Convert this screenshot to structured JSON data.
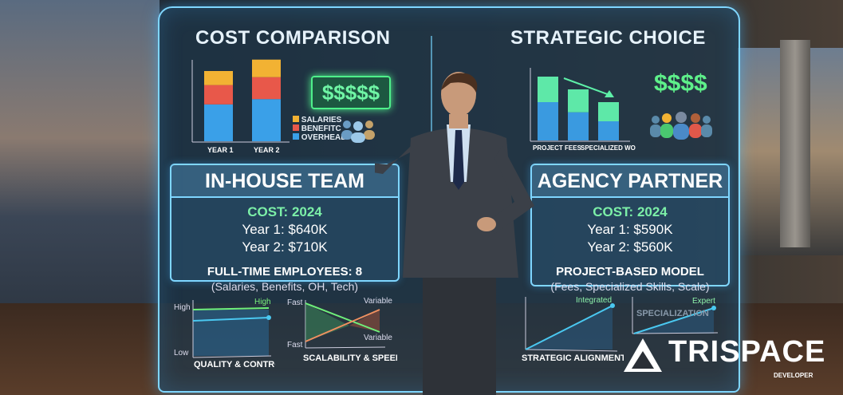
{
  "left": {
    "title": "COST COMPARISON",
    "chart": {
      "categories": [
        "YEAR 1",
        "YEAR 2"
      ],
      "series": [
        {
          "name": "OVERHEAD",
          "color": "#3aa0e8",
          "values": [
            42,
            48
          ]
        },
        {
          "name": "BENEFITC",
          "color": "#e8584a",
          "values": [
            22,
            25
          ]
        },
        {
          "name": "SALARIES",
          "color": "#f2b233",
          "values": [
            16,
            20
          ]
        }
      ]
    },
    "money_text": "$$$$$",
    "box": {
      "heading": "IN-HOUSE TEAM",
      "cost": "COST: 2024",
      "year1": "Year 1: $640K",
      "year2": "Year 2: $710K",
      "model": "FULL-TIME EMPLOYEES: 8",
      "detail": "(Salaries, Benefits, OH, Tech)"
    },
    "quality": {
      "label": "QUALITY & CONTROL",
      "y_high": "High",
      "y_low": "Low",
      "series_label": "High"
    },
    "scal": {
      "label": "SCALABILITY & SPEED",
      "y_top": "Fast",
      "y_bottom": "Fast",
      "label_top": "Variable",
      "label_bottom": "Variable"
    }
  },
  "right": {
    "title": "STRATEGIC CHOICE",
    "chart": {
      "categories": [
        "PROJECT FEES",
        "SPECIALIZED WORK"
      ],
      "values": [
        [
          50,
          30
        ],
        [
          40,
          22
        ],
        [
          30,
          15
        ]
      ]
    },
    "money_text": "$$$$",
    "box": {
      "heading": "AGENCY PARTNER",
      "cost": "COST: 2024",
      "year1": "Year 1: $590K",
      "year2": "Year 2: $560K",
      "model": "PROJECT-BASED MODEL",
      "detail": "(Fees, Specialized Skills, Scale)"
    },
    "align": {
      "label": "STRATEGIC ALIGNMENT",
      "point_label": "Integrated"
    },
    "spec": {
      "label": "SPECIALIZATION",
      "point_label": "Expert"
    }
  },
  "logo": {
    "name": "TRISPACE",
    "sub": "DEVELOPER"
  }
}
